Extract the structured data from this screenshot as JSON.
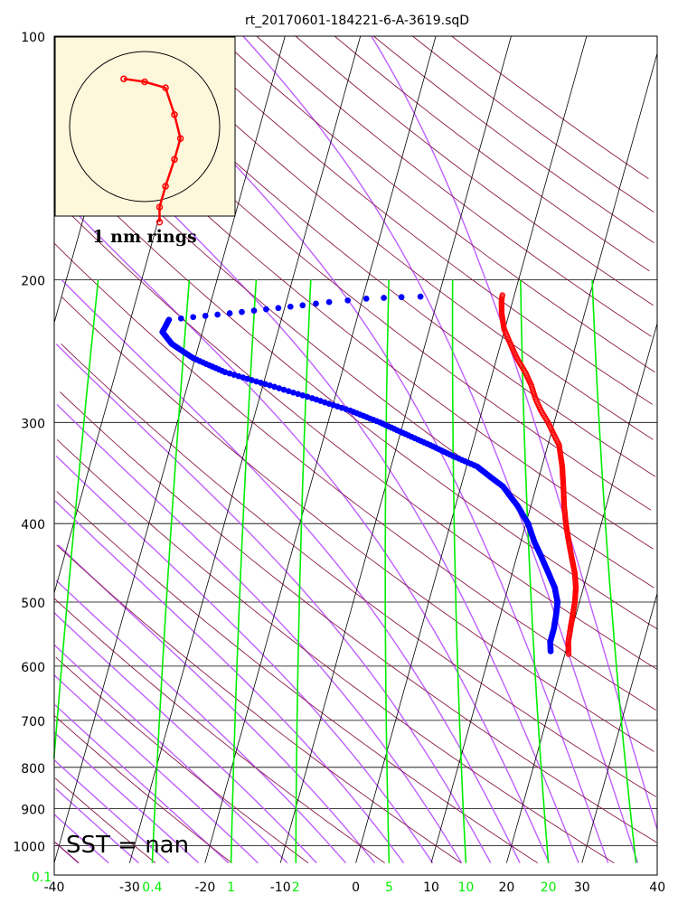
{
  "chart_data": {
    "type": "skew-t",
    "title": "rt_20170601-184221-6-A-3619.sqD",
    "sst_label": "SST =  nan",
    "ring_label": "1 nm rings",
    "y_axis": {
      "scale": "log",
      "ticks": [
        "100",
        "200",
        "300",
        "400",
        "500",
        "600",
        "700",
        "800",
        "900",
        "1000"
      ],
      "range": [
        100,
        1050
      ]
    },
    "x_axis": {
      "ticks": [
        "-40",
        "-30",
        "-20",
        "-10",
        "0",
        "10",
        "20",
        "30",
        "40"
      ],
      "range": [
        -40,
        40
      ]
    },
    "mixing_ratio_labels": [
      "0.1",
      "0.4",
      "1",
      "2",
      "5",
      "10",
      "20"
    ],
    "colors": {
      "temperature": "#ff0000",
      "dewpoint": "#0000ff",
      "isotherm": "#000000",
      "dry_adiabat": "#8b1a4a",
      "moist_adiabat": "#bf5fff",
      "mixing_ratio": "#00ee00",
      "hodograph_bg": "#fdf7dc"
    },
    "temperature": [
      [
        580,
        20.5
      ],
      [
        560,
        20.0
      ],
      [
        540,
        19.8
      ],
      [
        520,
        19.6
      ],
      [
        500,
        19.4
      ],
      [
        480,
        19.0
      ],
      [
        460,
        18.3
      ],
      [
        440,
        17.3
      ],
      [
        420,
        16.3
      ],
      [
        400,
        15.3
      ],
      [
        380,
        14.4
      ],
      [
        360,
        13.6
      ],
      [
        340,
        12.7
      ],
      [
        320,
        11.5
      ],
      [
        300,
        9.2
      ],
      [
        290,
        7.8
      ],
      [
        280,
        6.6
      ],
      [
        270,
        5.6
      ],
      [
        260,
        4.3
      ],
      [
        250,
        2.7
      ],
      [
        240,
        1.3
      ],
      [
        230,
        -0.1
      ],
      [
        220,
        -1.0
      ],
      [
        212,
        -1.5
      ],
      [
        208,
        -1.6
      ]
    ],
    "dewpoint": [
      [
        575,
        18.0
      ],
      [
        560,
        17.6
      ],
      [
        540,
        17.6
      ],
      [
        520,
        17.4
      ],
      [
        500,
        17.1
      ],
      [
        480,
        16.2
      ],
      [
        460,
        14.8
      ],
      [
        440,
        13.3
      ],
      [
        420,
        11.7
      ],
      [
        400,
        10.3
      ],
      [
        380,
        8.2
      ],
      [
        360,
        5.6
      ],
      [
        340,
        1.4
      ],
      [
        330,
        -2.2
      ],
      [
        320,
        -5.6
      ],
      [
        310,
        -9.3
      ],
      [
        300,
        -13.1
      ],
      [
        290,
        -17.5
      ],
      [
        280,
        -23.0
      ],
      [
        270,
        -29.1
      ],
      [
        260,
        -35.5
      ],
      [
        250,
        -40.2
      ],
      [
        240,
        -43.6
      ],
      [
        232,
        -45.3
      ],
      [
        228,
        -45.1
      ],
      [
        224,
        -44.9
      ],
      [
        215,
        -27.7
      ],
      [
        213,
        -24.3
      ],
      [
        211,
        -19.5
      ],
      [
        210,
        -14.9
      ],
      [
        209.5,
        -9.9
      ]
    ],
    "hodograph": [
      [
        0.05,
        -0.32
      ],
      [
        0.05,
        -0.27
      ],
      [
        0.07,
        -0.2
      ],
      [
        0.1,
        -0.11
      ],
      [
        0.12,
        -0.04
      ],
      [
        0.1,
        0.04
      ],
      [
        0.07,
        0.13
      ],
      [
        0.0,
        0.15
      ],
      [
        -0.07,
        0.16
      ]
    ]
  }
}
